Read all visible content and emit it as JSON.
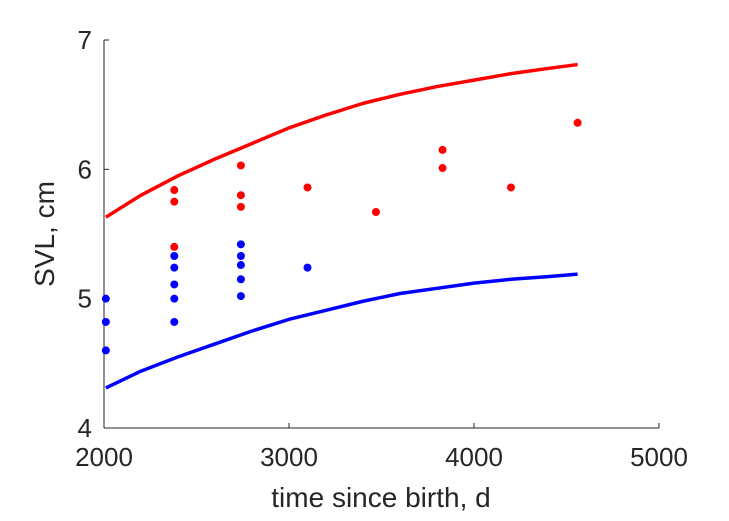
{
  "chart_data": {
    "type": "scatter",
    "title": "",
    "xlabel": "time since birth, d",
    "ylabel": "SVL, cm",
    "xlim": [
      2000,
      5000
    ],
    "ylim": [
      4,
      7
    ],
    "xticks": [
      "2000",
      "3000",
      "4000",
      "5000"
    ],
    "yticks": [
      "4",
      "5",
      "6",
      "7"
    ],
    "grid": false,
    "legend": "none",
    "series": [
      {
        "kind": "points",
        "color": "#ff0000",
        "points": [
          {
            "x": 2380,
            "y": 5.84
          },
          {
            "x": 2380,
            "y": 5.75
          },
          {
            "x": 2380,
            "y": 5.4
          },
          {
            "x": 2740,
            "y": 6.03
          },
          {
            "x": 2740,
            "y": 5.8
          },
          {
            "x": 2740,
            "y": 5.71
          },
          {
            "x": 3100,
            "y": 5.86
          },
          {
            "x": 3470,
            "y": 5.67
          },
          {
            "x": 3830,
            "y": 6.15
          },
          {
            "x": 3830,
            "y": 6.01
          },
          {
            "x": 4200,
            "y": 5.86
          },
          {
            "x": 4560,
            "y": 6.36
          }
        ]
      },
      {
        "kind": "points",
        "color": "#0000ff",
        "points": [
          {
            "x": 2010,
            "y": 5.0
          },
          {
            "x": 2010,
            "y": 4.82
          },
          {
            "x": 2010,
            "y": 4.6
          },
          {
            "x": 2380,
            "y": 5.33
          },
          {
            "x": 2380,
            "y": 5.24
          },
          {
            "x": 2380,
            "y": 5.11
          },
          {
            "x": 2380,
            "y": 5.0
          },
          {
            "x": 2380,
            "y": 4.82
          },
          {
            "x": 2740,
            "y": 5.42
          },
          {
            "x": 2740,
            "y": 5.33
          },
          {
            "x": 2740,
            "y": 5.26
          },
          {
            "x": 2740,
            "y": 5.15
          },
          {
            "x": 2740,
            "y": 5.02
          },
          {
            "x": 3100,
            "y": 5.24
          }
        ]
      },
      {
        "kind": "line",
        "color": "#ff0000",
        "x": [
          2010,
          2200,
          2400,
          2600,
          2800,
          3000,
          3200,
          3400,
          3600,
          3800,
          4000,
          4200,
          4400,
          4560
        ],
        "y": [
          5.63,
          5.8,
          5.95,
          6.08,
          6.2,
          6.32,
          6.42,
          6.51,
          6.58,
          6.64,
          6.69,
          6.74,
          6.78,
          6.81
        ]
      },
      {
        "kind": "line",
        "color": "#0000ff",
        "x": [
          2010,
          2200,
          2400,
          2600,
          2800,
          3000,
          3200,
          3400,
          3600,
          3800,
          4000,
          4200,
          4400,
          4560
        ],
        "y": [
          4.31,
          4.44,
          4.55,
          4.65,
          4.75,
          4.84,
          4.91,
          4.98,
          5.04,
          5.08,
          5.12,
          5.15,
          5.17,
          5.19
        ]
      }
    ]
  }
}
